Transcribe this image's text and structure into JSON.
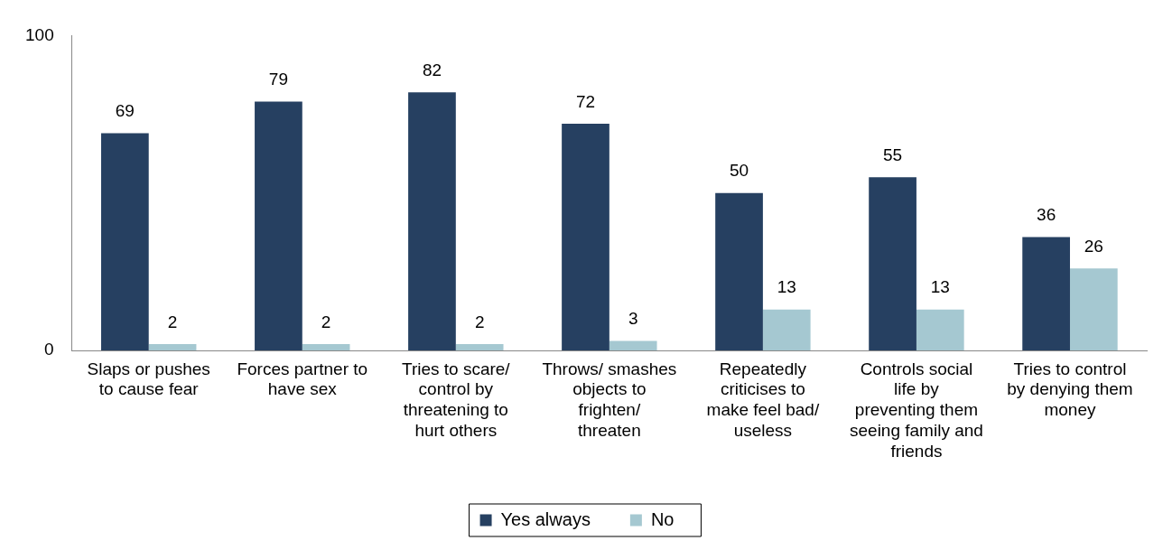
{
  "chart_data": {
    "type": "bar",
    "categories": [
      "Slaps or pushes to cause fear",
      "Forces partner to have sex",
      "Tries to scare/ control by threatening to hurt others",
      "Throws/ smashes objects to frighten/ threaten",
      "Repeatedly criticises to make feel bad/ useless",
      "Controls social life by preventing them seeing family and friends",
      "Tries to control by denying them money"
    ],
    "series": [
      {
        "name": "Yes always",
        "color": "#264061",
        "values": [
          69,
          79,
          82,
          72,
          50,
          55,
          36
        ]
      },
      {
        "name": "No",
        "color": "#a5c8d1",
        "values": [
          2,
          2,
          2,
          3,
          13,
          13,
          26
        ]
      }
    ],
    "ylim": [
      0,
      100
    ],
    "yticks": [
      0,
      100
    ],
    "grid": false,
    "legend": "bottom",
    "data_labels": true
  }
}
